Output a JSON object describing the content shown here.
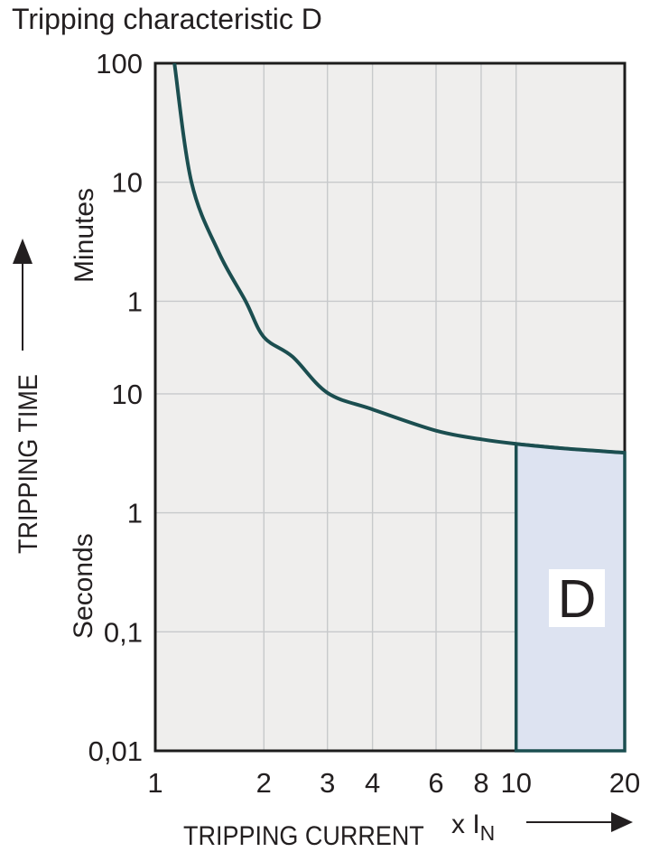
{
  "title": "Tripping characteristic D",
  "chart_data": {
    "type": "line",
    "title": "Tripping characteristic D",
    "x_axis": {
      "label": "TRIPPING CURRENT",
      "unit_label": "x I",
      "unit_sub": "N",
      "scale": "log",
      "min": 1,
      "max": 20,
      "ticks": [
        1,
        2,
        3,
        4,
        6,
        8,
        10,
        20
      ]
    },
    "y_axis": {
      "label": "TRIPPING TIME",
      "scale": "log",
      "unit_top": "Minutes",
      "unit_bottom": "Seconds",
      "max_seconds": 6000,
      "min_seconds": 0.01,
      "ticks": [
        {
          "label": "100",
          "seconds": 6000
        },
        {
          "label": "10",
          "seconds": 600
        },
        {
          "label": "1",
          "seconds": 60
        },
        {
          "label": "10",
          "seconds": 10
        },
        {
          "label": "1",
          "seconds": 1
        },
        {
          "label": "0,1",
          "seconds": 0.1
        },
        {
          "label": "0,01",
          "seconds": 0.01
        }
      ]
    },
    "grid": {
      "x_lines": [
        2,
        3,
        4,
        6,
        8,
        10
      ],
      "y_lines_seconds": [
        600,
        60,
        10,
        1,
        0.1
      ]
    },
    "series": [
      {
        "name": "D tripping curve",
        "points": [
          [
            1.13,
            6000
          ],
          [
            1.26,
            600
          ],
          [
            1.5,
            154
          ],
          [
            1.78,
            60
          ],
          [
            2.0,
            30
          ],
          [
            2.4,
            20.5
          ],
          [
            3.0,
            10.2
          ],
          [
            4.0,
            7.4
          ],
          [
            6.0,
            4.9
          ],
          [
            8.0,
            4.15
          ],
          [
            10.0,
            3.8
          ],
          [
            14.0,
            3.45
          ],
          [
            20.0,
            3.2
          ]
        ]
      }
    ],
    "region": {
      "label": "D",
      "x_from": 10,
      "x_to": 20
    },
    "colors": {
      "curve": "#1b4e50",
      "region_fill": "#dde3f1",
      "plot_bg": "#efeeed",
      "grid": "#c7c9cb",
      "border": "#1c1c1c",
      "text": "#231f20",
      "region_label_bg": "#ffffff"
    }
  }
}
